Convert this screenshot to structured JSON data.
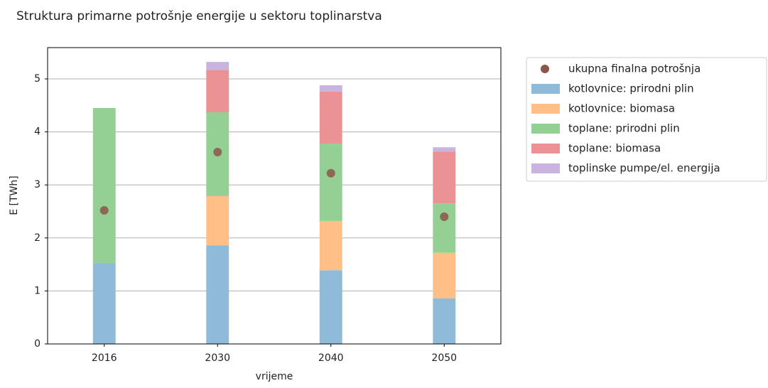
{
  "chart_data": {
    "type": "bar",
    "stacked": true,
    "title": "Struktura primarne potrošnje energije u sektoru toplinarstva",
    "x_label": "vrijeme",
    "y_label": "E [TWh]",
    "categories": [
      "2016",
      "2030",
      "2040",
      "2050"
    ],
    "series": [
      {
        "name": "ukupna finalna potrošnja",
        "type": "scatter",
        "color": "#8c564b",
        "values": [
          2.52,
          3.62,
          3.22,
          2.4
        ]
      },
      {
        "name": "kotlovnice: prirodni plin",
        "color": "#8fbbd9",
        "values": [
          1.53,
          1.86,
          1.39,
          0.86
        ]
      },
      {
        "name": "kotlovnice: biomasa",
        "color": "#ffbf86",
        "values": [
          0,
          0.93,
          0.93,
          0.86
        ]
      },
      {
        "name": "toplane: prirodni plin",
        "color": "#94cf94",
        "values": [
          2.92,
          1.58,
          1.46,
          0.93
        ]
      },
      {
        "name": "toplane: biomasa",
        "color": "#eb9394",
        "values": [
          0,
          0.8,
          0.98,
          0.98
        ]
      },
      {
        "name": "toplinske pumpe/el. energija",
        "color": "#cab3de",
        "values": [
          0,
          0.15,
          0.12,
          0.08
        ]
      }
    ],
    "ylim": [
      0,
      5.59
    ],
    "yticks": [
      0,
      1,
      2,
      3,
      4,
      5
    ],
    "grid": true,
    "legend": "outside right"
  }
}
